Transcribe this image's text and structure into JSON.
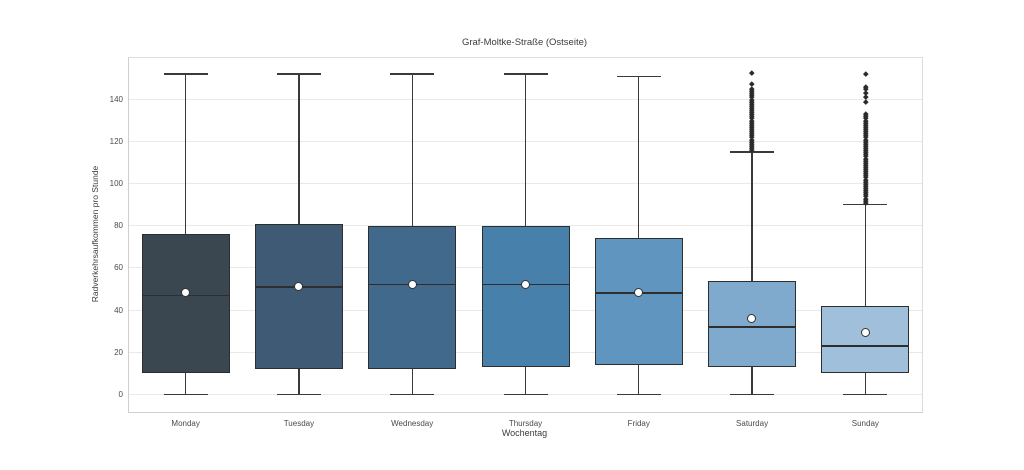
{
  "chart_data": {
    "type": "boxplot",
    "title": "Graf-Moltke-Straße (Ostseite)",
    "xlabel": "Wochentag",
    "ylabel": "Radverkehrsaufkommen pro Stunde",
    "ymin": -8.4,
    "ymax": 159.6,
    "yticks": [
      0,
      20,
      40,
      60,
      80,
      100,
      120,
      140
    ],
    "grid": "horizontal",
    "categories": [
      "Monday",
      "Tuesday",
      "Wednesday",
      "Thursday",
      "Friday",
      "Saturday",
      "Sunday"
    ],
    "series": [
      {
        "label": "Monday",
        "whislo": 0,
        "q1": 10,
        "med": 47,
        "q3": 76,
        "whishi": 152,
        "mean": 48,
        "color": "#3A4750",
        "fliers": []
      },
      {
        "label": "Tuesday",
        "whislo": 0,
        "q1": 12,
        "med": 51,
        "q3": 81,
        "whishi": 152,
        "mean": 51,
        "color": "#3E5A74",
        "fliers": []
      },
      {
        "label": "Wednesday",
        "whislo": 0,
        "q1": 12,
        "med": 52,
        "q3": 80,
        "whishi": 152,
        "mean": 52,
        "color": "#41698B",
        "fliers": []
      },
      {
        "label": "Thursday",
        "whislo": 0,
        "q1": 13,
        "med": 52,
        "q3": 80,
        "whishi": 152,
        "mean": 52,
        "color": "#4780AB",
        "fliers": []
      },
      {
        "label": "Friday",
        "whislo": 0,
        "q1": 14,
        "med": 48,
        "q3": 74,
        "whishi": 151,
        "mean": 48,
        "color": "#6095C0",
        "fliers": []
      },
      {
        "label": "Saturday",
        "whislo": 0,
        "q1": 13,
        "med": 32,
        "q3": 54,
        "whishi": 115,
        "mean": 36,
        "color": "#7FA9CD",
        "fliers": [
          116,
          117,
          118,
          119,
          120,
          121,
          122,
          123,
          124,
          125,
          126,
          127,
          128,
          129,
          130,
          131,
          132,
          133,
          134,
          135,
          136,
          137,
          138,
          139,
          140,
          141,
          142,
          143,
          144,
          145,
          147.5,
          152.5
        ]
      },
      {
        "label": "Sunday",
        "whislo": 0,
        "q1": 10,
        "med": 23,
        "q3": 42,
        "whishi": 90,
        "mean": 29,
        "color": "#9FBFDA",
        "fliers": [
          91,
          92,
          93,
          94,
          95,
          96,
          97,
          98,
          99,
          100,
          101,
          102,
          103,
          104,
          105,
          106,
          107,
          108,
          109,
          110,
          111,
          112,
          113,
          114,
          115,
          116,
          117,
          118,
          119,
          120,
          121,
          122,
          123,
          124,
          125,
          126,
          127,
          128,
          129,
          130,
          131,
          132,
          133,
          139,
          141,
          143,
          145,
          146,
          152
        ]
      }
    ],
    "style": {
      "box_edge_color": "#2e2e2e",
      "whisker_color": "#3a3a3a",
      "median_color": "#2e2e2e",
      "mean_marker": "white-circle",
      "outlier_marker": "black-diamond",
      "gridline_color": "#e9e9e9",
      "background": "#ffffff"
    }
  }
}
